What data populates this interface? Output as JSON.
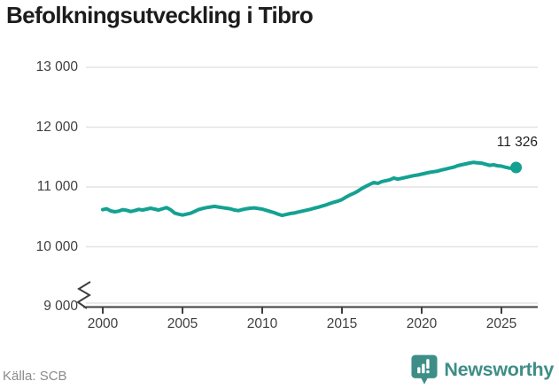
{
  "title": "Befolkningsutveckling i Tibro",
  "source": "Källa: SCB",
  "logo": {
    "brand": "Newsworthy",
    "icon": "newsworthy-badge-icon"
  },
  "annotation": {
    "label": "11 326"
  },
  "colors": {
    "line": "#14a192",
    "dot": "#14a192",
    "brand": "#3e8e87",
    "grid": "#e3e3e3",
    "axis": "#3f3f3f",
    "title": "#1c1c1c",
    "tick_text": "#3f3f3f",
    "annotation": "#1f1f1f",
    "source_text": "#8b8b8b"
  },
  "chart_data": {
    "type": "line",
    "title": "Befolkningsutveckling i Tibro",
    "series_name": "Befolkning i Tibro",
    "xlabel": "",
    "ylabel": "",
    "ylim": [
      9000,
      13000
    ],
    "xlim": [
      2000,
      2026.3
    ],
    "grid": true,
    "legend": "none",
    "axis_break": true,
    "y_ticks": [
      "13 000",
      "12 000",
      "11 000",
      "10 000",
      "9 000"
    ],
    "y_tick_values": [
      13000,
      12000,
      11000,
      10000,
      9000
    ],
    "x_ticks": [
      "2000",
      "2005",
      "2010",
      "2015",
      "2020",
      "2025"
    ],
    "x_tick_values": [
      2000,
      2005,
      2010,
      2015,
      2020,
      2025
    ],
    "latest_value": 11326,
    "latest_label": "11 326",
    "x": [
      2000.0,
      2000.25,
      2000.5,
      2000.75,
      2001.0,
      2001.25,
      2001.5,
      2001.75,
      2002.0,
      2002.25,
      2002.5,
      2002.75,
      2003.0,
      2003.25,
      2003.5,
      2003.75,
      2004.0,
      2004.25,
      2004.5,
      2004.75,
      2005.0,
      2005.25,
      2005.5,
      2005.75,
      2006.0,
      2006.25,
      2006.5,
      2006.75,
      2007.0,
      2007.25,
      2007.5,
      2007.75,
      2008.0,
      2008.25,
      2008.5,
      2008.75,
      2009.0,
      2009.25,
      2009.5,
      2009.75,
      2010.0,
      2010.25,
      2010.5,
      2010.75,
      2011.0,
      2011.25,
      2011.5,
      2011.75,
      2012.0,
      2012.25,
      2012.5,
      2012.75,
      2013.0,
      2013.25,
      2013.5,
      2013.75,
      2014.0,
      2014.25,
      2014.5,
      2014.75,
      2015.0,
      2015.25,
      2015.5,
      2015.75,
      2016.0,
      2016.25,
      2016.5,
      2016.75,
      2017.0,
      2017.25,
      2017.5,
      2017.75,
      2018.0,
      2018.25,
      2018.5,
      2018.75,
      2019.0,
      2019.25,
      2019.5,
      2019.75,
      2020.0,
      2020.25,
      2020.5,
      2020.75,
      2021.0,
      2021.25,
      2021.5,
      2021.75,
      2022.0,
      2022.25,
      2022.5,
      2022.75,
      2023.0,
      2023.25,
      2023.5,
      2023.75,
      2024.0,
      2024.25,
      2024.5,
      2024.75,
      2025.0,
      2025.25,
      2025.5,
      2025.75,
      2025.92
    ],
    "values": [
      10620,
      10635,
      10600,
      10585,
      10595,
      10620,
      10610,
      10590,
      10605,
      10625,
      10615,
      10630,
      10645,
      10630,
      10615,
      10635,
      10655,
      10620,
      10565,
      10545,
      10530,
      10545,
      10560,
      10590,
      10620,
      10640,
      10655,
      10665,
      10675,
      10665,
      10655,
      10645,
      10635,
      10615,
      10605,
      10620,
      10635,
      10645,
      10650,
      10640,
      10630,
      10610,
      10590,
      10570,
      10545,
      10525,
      10540,
      10555,
      10565,
      10580,
      10595,
      10610,
      10625,
      10645,
      10660,
      10680,
      10700,
      10725,
      10745,
      10765,
      10790,
      10830,
      10865,
      10895,
      10930,
      10975,
      11010,
      11045,
      11075,
      11060,
      11090,
      11105,
      11120,
      11150,
      11130,
      11145,
      11160,
      11175,
      11190,
      11200,
      11215,
      11230,
      11245,
      11255,
      11265,
      11285,
      11300,
      11315,
      11330,
      11355,
      11370,
      11385,
      11400,
      11412,
      11405,
      11398,
      11380,
      11362,
      11370,
      11355,
      11348,
      11330,
      11315,
      11305,
      11326
    ]
  }
}
